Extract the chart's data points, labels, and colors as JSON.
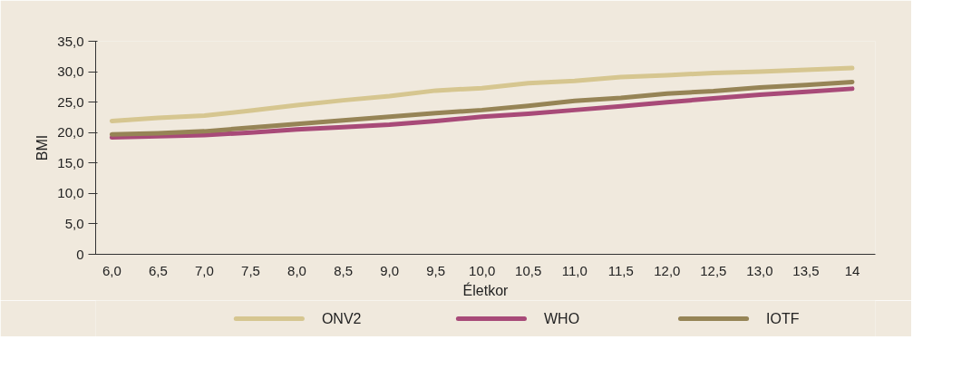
{
  "chart_data": {
    "type": "line",
    "xlabel": "Életkor",
    "ylabel": "BMI",
    "categories": [
      "6,0",
      "6,5",
      "7,0",
      "7,5",
      "8,0",
      "8,5",
      "9,0",
      "9,5",
      "10,0",
      "10,5",
      "11,0",
      "11,5",
      "12,0",
      "12,5",
      "13,0",
      "13,5",
      "14"
    ],
    "series": [
      {
        "name": "ONV2",
        "color": "#d6c690",
        "values": [
          21.9,
          22.4,
          22.8,
          23.6,
          24.5,
          25.3,
          26.0,
          26.9,
          27.3,
          28.1,
          28.5,
          29.1,
          29.4,
          29.8,
          30.0,
          30.3,
          30.6
        ]
      },
      {
        "name": "WHO",
        "color": "#a84a78",
        "values": [
          19.2,
          19.4,
          19.6,
          20.0,
          20.5,
          20.9,
          21.3,
          21.9,
          22.6,
          23.1,
          23.7,
          24.3,
          25.0,
          25.6,
          26.2,
          26.7,
          27.2
        ]
      },
      {
        "name": "IOTF",
        "color": "#968456",
        "values": [
          19.7,
          19.9,
          20.2,
          20.8,
          21.4,
          22.0,
          22.6,
          23.2,
          23.7,
          24.4,
          25.2,
          25.7,
          26.4,
          26.8,
          27.4,
          27.8,
          28.3
        ]
      }
    ],
    "ylim": [
      0,
      35
    ],
    "yticks": [
      {
        "value": 0,
        "label": "0"
      },
      {
        "value": 5,
        "label": "5,0"
      },
      {
        "value": 10,
        "label": "10,0"
      },
      {
        "value": 15,
        "label": "15,0"
      },
      {
        "value": 20,
        "label": "20,0"
      },
      {
        "value": 25,
        "label": "25,0"
      },
      {
        "value": 30,
        "label": "30,0"
      },
      {
        "value": 35,
        "label": "35,0"
      }
    ],
    "grid": false,
    "legend": "bottom",
    "marker": "none",
    "line_style": "solid"
  }
}
